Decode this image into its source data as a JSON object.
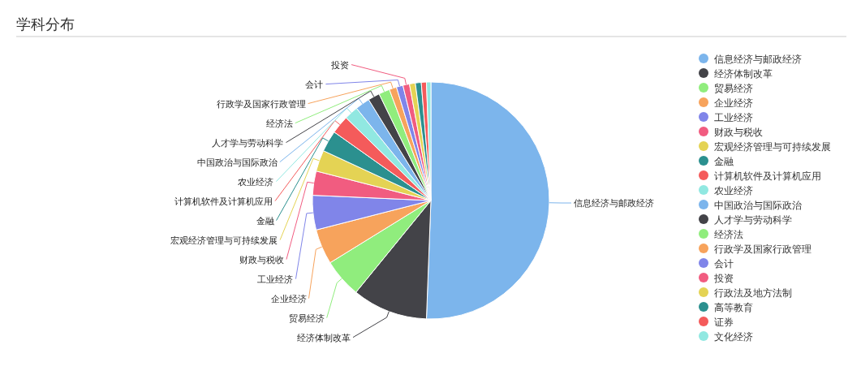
{
  "chart_data": {
    "type": "pie",
    "title": "学科分布",
    "legend": "right",
    "categories": [
      "信息经济与邮政经济",
      "经济体制改革",
      "贸易经济",
      "企业经济",
      "工业经济",
      "财政与税收",
      "宏观经济管理与可持续发展",
      "金融",
      "计算机软件及计算机应用",
      "农业经济",
      "中国政治与国际政治",
      "人才学与劳动科学",
      "经济法",
      "行政学及国家行政管理",
      "会计",
      "投资",
      "行政法及地方法制",
      "高等教育",
      "证券",
      "文化经济"
    ],
    "values": [
      50.6,
      10.3,
      5.3,
      4.8,
      4.7,
      3.3,
      2.9,
      2.9,
      2.5,
      1.9,
      2.0,
      1.6,
      1.5,
      1.0,
      0.9,
      0.9,
      0.8,
      0.8,
      0.7,
      0.6
    ],
    "colors": [
      "#7cb5ec",
      "#434348",
      "#90ed7d",
      "#f7a35c",
      "#8085e9",
      "#f15c80",
      "#e4d354",
      "#2b908f",
      "#f45b5b",
      "#91e8e1",
      "#7cb5ec",
      "#434348",
      "#90ed7d",
      "#f7a35c",
      "#8085e9",
      "#f15c80",
      "#e4d354",
      "#2b908f",
      "#f45b5b",
      "#91e8e1"
    ]
  }
}
